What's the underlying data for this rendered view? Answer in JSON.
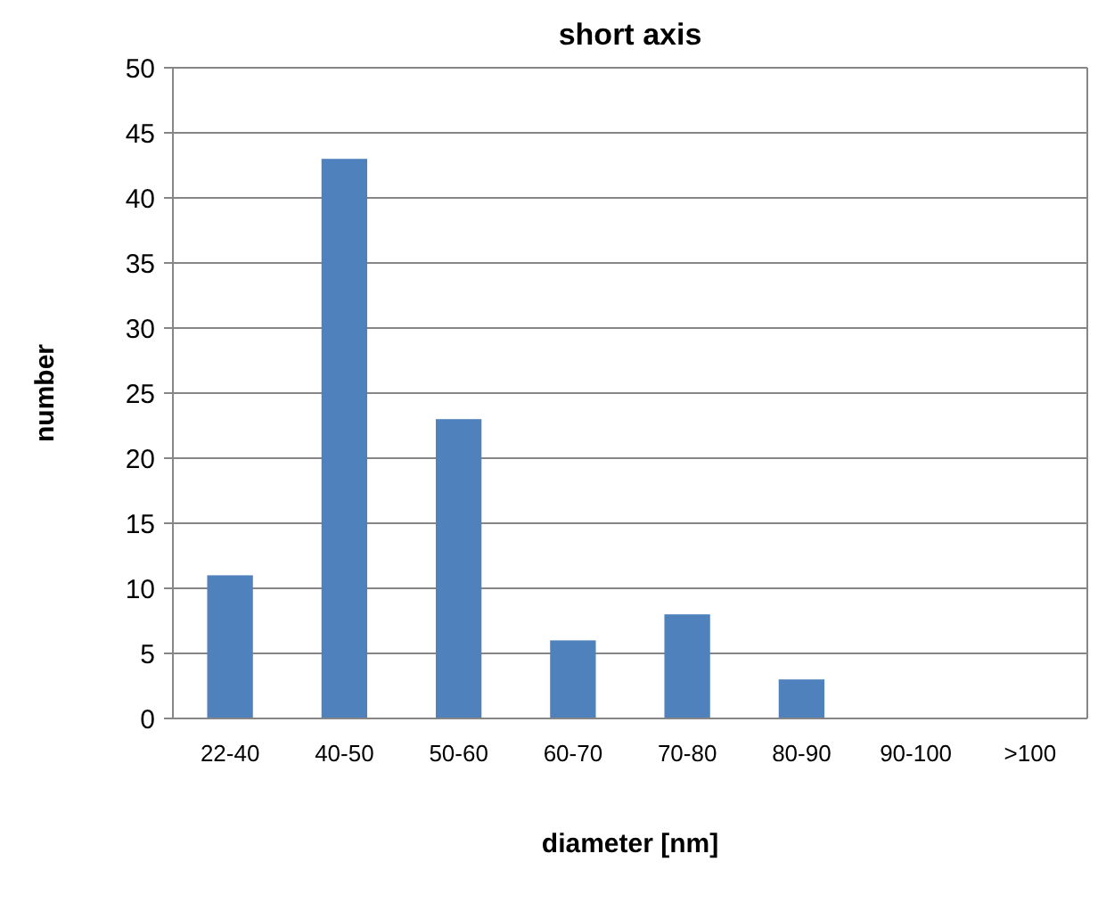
{
  "chart_data": {
    "type": "bar",
    "title": "short axis",
    "xlabel": "diameter [nm]",
    "ylabel": "number",
    "categories": [
      "22-40",
      "40-50",
      "50-60",
      "60-70",
      "70-80",
      "80-90",
      "90-100",
      ">100"
    ],
    "values": [
      11,
      43,
      23,
      6,
      8,
      3,
      0,
      0
    ],
    "color": "#4f81bd",
    "ylim": [
      0,
      50
    ],
    "yticks": [
      0,
      5,
      10,
      15,
      20,
      25,
      30,
      35,
      40,
      45,
      50
    ],
    "grid": "y"
  }
}
